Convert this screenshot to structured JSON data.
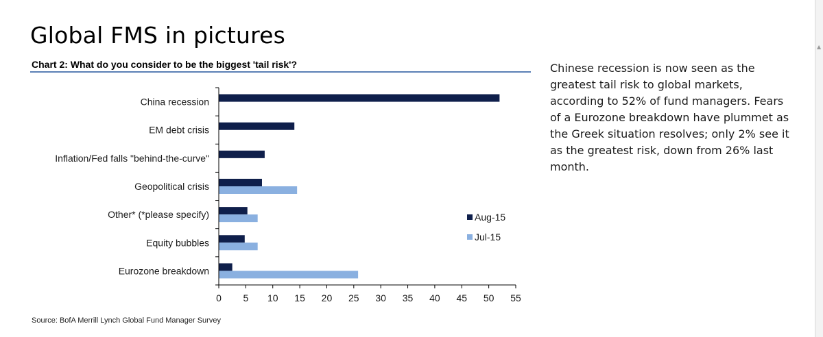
{
  "page": {
    "title": "Global FMS in pictures",
    "commentary": "Chinese recession is now seen as the greatest tail risk to global markets, according to 52% of fund managers. Fears of a Eurozone breakdown have plummet as the Greek situation resolves; only 2% see it as the greatest risk, down from 26% last month.",
    "source": "Source: BofA Merrill Lynch Global Fund Manager Survey"
  },
  "colors": {
    "aug": "#0f1f4b",
    "jul": "#8ab0e0",
    "rule": "#5a7fb5"
  },
  "chart_data": {
    "type": "bar",
    "orientation": "horizontal",
    "title": "Chart 2: What do you consider to be the biggest 'tail risk'?",
    "categories": [
      "China recession",
      "EM debt crisis",
      "Inflation/Fed falls \"behind-the-curve\"",
      "Geopolitical crisis",
      "Other* (*please specify)",
      "Equity bubbles",
      "Eurozone breakdown"
    ],
    "series": [
      {
        "name": "Aug-15",
        "values": [
          52,
          14,
          8.5,
          8,
          5.3,
          4.8,
          2.5
        ]
      },
      {
        "name": "Jul-15",
        "values": [
          null,
          null,
          null,
          14.5,
          7.2,
          7.2,
          25.8
        ]
      }
    ],
    "xlim": [
      0,
      55
    ],
    "xticks": [
      0,
      5,
      10,
      15,
      20,
      25,
      30,
      35,
      40,
      45,
      50,
      55
    ],
    "xlabel": "",
    "ylabel": "",
    "grid": false,
    "legend_position": "right"
  }
}
